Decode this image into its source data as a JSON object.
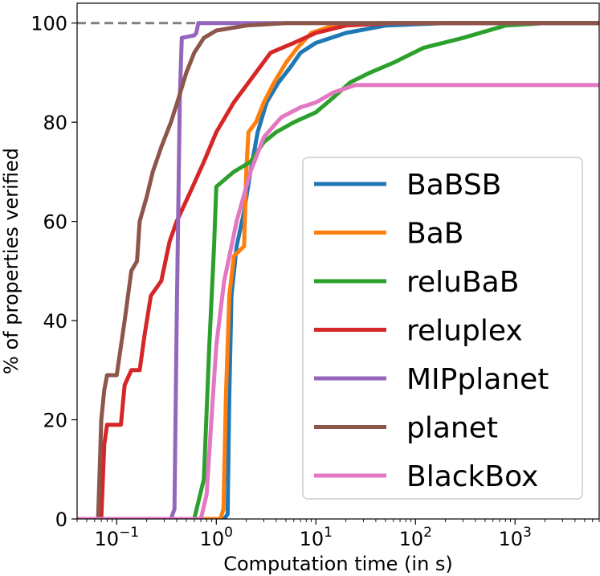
{
  "chart_data": {
    "type": "line",
    "title": "",
    "xlabel": "Computation time (in s)",
    "ylabel": "% of properties verified",
    "x_scale": "log",
    "xlim": [
      0.04,
      7000
    ],
    "ylim": [
      0,
      104
    ],
    "x_ticks": [
      {
        "value": 0.1,
        "base": "10",
        "exp": "−1"
      },
      {
        "value": 1,
        "base": "10",
        "exp": "0"
      },
      {
        "value": 10,
        "base": "10",
        "exp": "1"
      },
      {
        "value": 100,
        "base": "10",
        "exp": "2"
      },
      {
        "value": 1000,
        "base": "10",
        "exp": "3"
      }
    ],
    "y_ticks": [
      {
        "value": 0,
        "label": "0"
      },
      {
        "value": 20,
        "label": "20"
      },
      {
        "value": 40,
        "label": "40"
      },
      {
        "value": 60,
        "label": "60"
      },
      {
        "value": 80,
        "label": "80"
      },
      {
        "value": 100,
        "label": "100"
      }
    ],
    "reference_line": {
      "y": 100,
      "style": "dashed",
      "color": "#808080"
    },
    "grid": false,
    "legend": {
      "placement": "lower-right"
    },
    "series": [
      {
        "name": "BaBSB",
        "color": "#1f77b4",
        "points": [
          [
            0.04,
            0
          ],
          [
            1.2,
            0
          ],
          [
            1.3,
            1
          ],
          [
            1.35,
            25
          ],
          [
            1.42,
            45
          ],
          [
            1.6,
            55
          ],
          [
            1.9,
            62
          ],
          [
            2.2,
            70
          ],
          [
            2.6,
            78
          ],
          [
            3.2,
            84
          ],
          [
            4.2,
            88
          ],
          [
            5.5,
            91
          ],
          [
            7,
            94
          ],
          [
            10,
            96
          ],
          [
            20,
            98
          ],
          [
            50,
            99.5
          ],
          [
            200,
            100
          ],
          [
            7000,
            100
          ]
        ]
      },
      {
        "name": "BaB",
        "color": "#ff7f0e",
        "points": [
          [
            0.04,
            0
          ],
          [
            1.1,
            0
          ],
          [
            1.18,
            2
          ],
          [
            1.25,
            25
          ],
          [
            1.35,
            45
          ],
          [
            1.5,
            53
          ],
          [
            1.9,
            55
          ],
          [
            2.0,
            70
          ],
          [
            2.1,
            78
          ],
          [
            2.5,
            80
          ],
          [
            3,
            84
          ],
          [
            3.8,
            88
          ],
          [
            5,
            92
          ],
          [
            6.5,
            95
          ],
          [
            9,
            98
          ],
          [
            15,
            99.5
          ],
          [
            40,
            100
          ],
          [
            7000,
            100
          ]
        ]
      },
      {
        "name": "reluBaB",
        "color": "#2ca02c",
        "points": [
          [
            0.04,
            0
          ],
          [
            0.6,
            0
          ],
          [
            0.75,
            8
          ],
          [
            0.85,
            35
          ],
          [
            0.95,
            55
          ],
          [
            1.0,
            67
          ],
          [
            1.5,
            70
          ],
          [
            2.2,
            72
          ],
          [
            3,
            76
          ],
          [
            4,
            78
          ],
          [
            6,
            80
          ],
          [
            10,
            82
          ],
          [
            15,
            85
          ],
          [
            22,
            88
          ],
          [
            35,
            90
          ],
          [
            60,
            92
          ],
          [
            120,
            95
          ],
          [
            300,
            97
          ],
          [
            800,
            99.5
          ],
          [
            2000,
            100
          ],
          [
            7000,
            100
          ]
        ]
      },
      {
        "name": "reluplex",
        "color": "#d62728",
        "points": [
          [
            0.04,
            0
          ],
          [
            0.07,
            0
          ],
          [
            0.075,
            15
          ],
          [
            0.08,
            19
          ],
          [
            0.11,
            19
          ],
          [
            0.12,
            27
          ],
          [
            0.14,
            30
          ],
          [
            0.17,
            30
          ],
          [
            0.19,
            37
          ],
          [
            0.22,
            45
          ],
          [
            0.28,
            48
          ],
          [
            0.34,
            56
          ],
          [
            0.4,
            60
          ],
          [
            0.55,
            66
          ],
          [
            0.75,
            72
          ],
          [
            1,
            78
          ],
          [
            1.5,
            84
          ],
          [
            2.5,
            90
          ],
          [
            3.5,
            94
          ],
          [
            6,
            96
          ],
          [
            10,
            98
          ],
          [
            20,
            99.5
          ],
          [
            60,
            100
          ],
          [
            7000,
            100
          ]
        ]
      },
      {
        "name": "MIPplanet",
        "color": "#9467bd",
        "points": [
          [
            0.04,
            0
          ],
          [
            0.35,
            0
          ],
          [
            0.38,
            2
          ],
          [
            0.4,
            40
          ],
          [
            0.43,
            85
          ],
          [
            0.45,
            97
          ],
          [
            0.6,
            97.5
          ],
          [
            0.63,
            98
          ],
          [
            0.66,
            100
          ],
          [
            7000,
            100
          ]
        ]
      },
      {
        "name": "planet",
        "color": "#8c564b",
        "points": [
          [
            0.04,
            0
          ],
          [
            0.065,
            0
          ],
          [
            0.07,
            20
          ],
          [
            0.075,
            26
          ],
          [
            0.08,
            29
          ],
          [
            0.1,
            29
          ],
          [
            0.12,
            40
          ],
          [
            0.14,
            50
          ],
          [
            0.16,
            52
          ],
          [
            0.17,
            60
          ],
          [
            0.2,
            65
          ],
          [
            0.23,
            70
          ],
          [
            0.28,
            75
          ],
          [
            0.35,
            80
          ],
          [
            0.42,
            85
          ],
          [
            0.5,
            90
          ],
          [
            0.6,
            94
          ],
          [
            0.75,
            97
          ],
          [
            1,
            98.5
          ],
          [
            2,
            99.5
          ],
          [
            5,
            100
          ],
          [
            7000,
            100
          ]
        ]
      },
      {
        "name": "BlackBox",
        "color": "#e377c2",
        "points": [
          [
            0.04,
            0
          ],
          [
            0.7,
            0
          ],
          [
            0.8,
            5
          ],
          [
            0.88,
            18
          ],
          [
            1.0,
            35
          ],
          [
            1.2,
            48
          ],
          [
            1.6,
            60
          ],
          [
            2.2,
            70
          ],
          [
            3,
            77
          ],
          [
            4.5,
            81
          ],
          [
            7,
            83
          ],
          [
            10,
            84
          ],
          [
            15,
            86
          ],
          [
            25,
            87.5
          ],
          [
            7000,
            87.5
          ]
        ]
      }
    ]
  }
}
